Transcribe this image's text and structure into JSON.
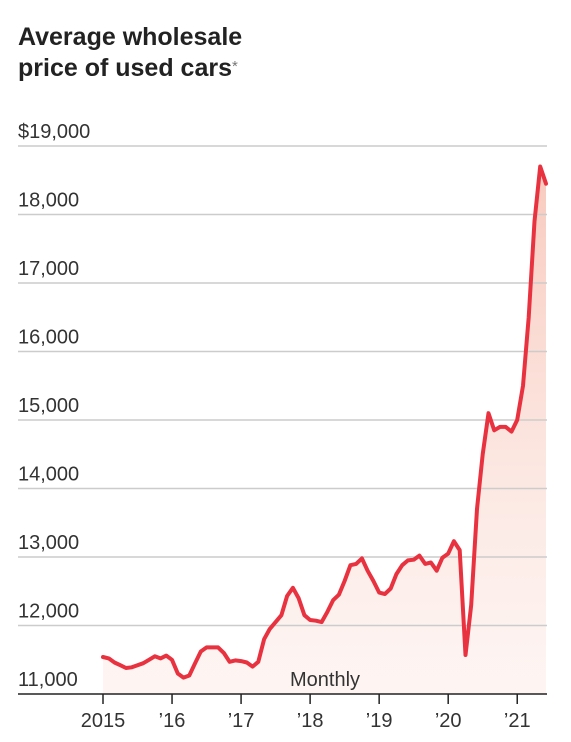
{
  "chart_data": {
    "type": "area-line",
    "title": "Average wholesale price of used cars",
    "title_note": "*",
    "annotation": "Monthly",
    "x": [
      0,
      1,
      2,
      3,
      4,
      5,
      6,
      7,
      8,
      9,
      10,
      11,
      12,
      13,
      14,
      15,
      16,
      17,
      18,
      19,
      20,
      21,
      22,
      23,
      24,
      25,
      26,
      27,
      28,
      29,
      30,
      31,
      32,
      33,
      34,
      35,
      36,
      37,
      38,
      39,
      40,
      41,
      42,
      43,
      44,
      45,
      46,
      47,
      48,
      49,
      50,
      51,
      52,
      53,
      54,
      55,
      56,
      57,
      58,
      59,
      60,
      61,
      62,
      63,
      64,
      65,
      66,
      67,
      68,
      69,
      70,
      71,
      72,
      73,
      74,
      75,
      76,
      77
    ],
    "series": [
      {
        "name": "Average wholesale price",
        "color": "#e8323f",
        "values": [
          11540,
          11520,
          11460,
          11420,
          11380,
          11390,
          11420,
          11450,
          11500,
          11550,
          11520,
          11560,
          11500,
          11300,
          11240,
          11270,
          11450,
          11620,
          11680,
          11680,
          11680,
          11600,
          11470,
          11490,
          11480,
          11460,
          11400,
          11470,
          11800,
          11950,
          12050,
          12150,
          12430,
          12550,
          12400,
          12150,
          12080,
          12070,
          12050,
          12200,
          12370,
          12450,
          12650,
          12880,
          12900,
          12980,
          12800,
          12650,
          12480,
          12460,
          12540,
          12750,
          12880,
          12950,
          12960,
          13020,
          12900,
          12920,
          12800,
          12990,
          13050,
          13230,
          13100,
          11570,
          12300,
          13700,
          14500,
          15100,
          14850,
          14900,
          14900,
          14830,
          15000,
          15500,
          16500,
          17900,
          18700,
          18450
        ]
      }
    ],
    "xlim": [
      0,
      77
    ],
    "xticks": [
      {
        "value": 0,
        "label": "2015"
      },
      {
        "value": 12,
        "label": "’16"
      },
      {
        "value": 24,
        "label": "’17"
      },
      {
        "value": 36,
        "label": "’18"
      },
      {
        "value": 48,
        "label": "’19"
      },
      {
        "value": 60,
        "label": "’20"
      },
      {
        "value": 72,
        "label": "’21"
      }
    ],
    "ylim": [
      11000,
      19000
    ],
    "yticks": [
      {
        "value": 19000,
        "label": "$19,000"
      },
      {
        "value": 18000,
        "label": "18,000"
      },
      {
        "value": 17000,
        "label": "17,000"
      },
      {
        "value": 16000,
        "label": "16,000"
      },
      {
        "value": 15000,
        "label": "15,000"
      },
      {
        "value": 14000,
        "label": "14,000"
      },
      {
        "value": 13000,
        "label": "13,000"
      },
      {
        "value": 12000,
        "label": "12,000"
      },
      {
        "value": 11000,
        "label": "11,000"
      }
    ],
    "grid": true
  }
}
